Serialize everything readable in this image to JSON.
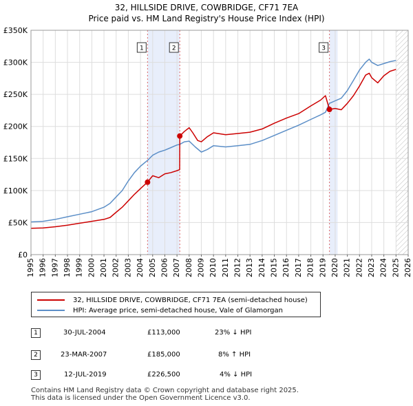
{
  "title_line1": "32, HILLSIDE DRIVE, COWBRIDGE, CF71 7EA",
  "title_line2": "Price paid vs. HM Land Registry's House Price Index (HPI)",
  "colors": {
    "property": "#cc0000",
    "hpi": "#5b8ec7",
    "shade": "#e8eefb",
    "grid": "#dddddd"
  },
  "chart_data": {
    "type": "line",
    "xlabel": "",
    "ylabel": "",
    "xlim": [
      1995,
      2026
    ],
    "ylim": [
      0,
      350000
    ],
    "x_ticks": [
      1995,
      1996,
      1997,
      1998,
      1999,
      2000,
      2001,
      2002,
      2003,
      2004,
      2005,
      2006,
      2007,
      2008,
      2009,
      2010,
      2011,
      2012,
      2013,
      2014,
      2015,
      2016,
      2017,
      2018,
      2019,
      2020,
      2021,
      2022,
      2023,
      2024,
      2025,
      2026
    ],
    "y_ticks": [
      {
        "value": 0,
        "label": "£0"
      },
      {
        "value": 50000,
        "label": "£50K"
      },
      {
        "value": 100000,
        "label": "£100K"
      },
      {
        "value": 150000,
        "label": "£150K"
      },
      {
        "value": 200000,
        "label": "£200K"
      },
      {
        "value": 250000,
        "label": "£250K"
      },
      {
        "value": 300000,
        "label": "£300K"
      },
      {
        "value": 350000,
        "label": "£350K"
      }
    ],
    "series": [
      {
        "name": "32, HILLSIDE DRIVE, COWBRIDGE, CF71 7EA (semi-detached house)",
        "color": "#cc0000",
        "points": [
          [
            1995.0,
            41000
          ],
          [
            1996.0,
            41500
          ],
          [
            1997.0,
            43500
          ],
          [
            1998.0,
            46000
          ],
          [
            1999.0,
            49000
          ],
          [
            2000.0,
            52000
          ],
          [
            2001.0,
            55000
          ],
          [
            2001.5,
            58000
          ],
          [
            2002.0,
            66000
          ],
          [
            2002.5,
            74000
          ],
          [
            2003.0,
            84000
          ],
          [
            2003.5,
            94000
          ],
          [
            2004.0,
            103000
          ],
          [
            2004.58,
            113000
          ],
          [
            2005.0,
            123000
          ],
          [
            2005.5,
            120000
          ],
          [
            2006.0,
            126000
          ],
          [
            2006.5,
            128000
          ],
          [
            2007.0,
            131000
          ],
          [
            2007.22,
            132500
          ],
          [
            2007.23,
            185000
          ],
          [
            2007.6,
            192000
          ],
          [
            2008.0,
            198000
          ],
          [
            2008.3,
            190000
          ],
          [
            2008.7,
            178000
          ],
          [
            2009.0,
            176000
          ],
          [
            2009.5,
            184000
          ],
          [
            2010.0,
            190000
          ],
          [
            2011.0,
            187000
          ],
          [
            2012.0,
            189000
          ],
          [
            2013.0,
            191000
          ],
          [
            2014.0,
            196000
          ],
          [
            2015.0,
            205000
          ],
          [
            2016.0,
            213000
          ],
          [
            2017.0,
            220000
          ],
          [
            2018.0,
            232000
          ],
          [
            2018.8,
            241000
          ],
          [
            2019.2,
            248000
          ],
          [
            2019.53,
            226500
          ],
          [
            2020.0,
            228000
          ],
          [
            2020.5,
            226000
          ],
          [
            2021.0,
            236000
          ],
          [
            2021.5,
            248000
          ],
          [
            2022.0,
            263000
          ],
          [
            2022.5,
            280000
          ],
          [
            2022.8,
            283000
          ],
          [
            2023.0,
            276000
          ],
          [
            2023.5,
            268000
          ],
          [
            2024.0,
            279000
          ],
          [
            2024.5,
            286000
          ],
          [
            2025.0,
            289000
          ]
        ]
      },
      {
        "name": "HPI: Average price, semi-detached house, Vale of Glamorgan",
        "color": "#5b8ec7",
        "points": [
          [
            1995.0,
            51000
          ],
          [
            1996.0,
            52000
          ],
          [
            1997.0,
            55000
          ],
          [
            1998.0,
            59000
          ],
          [
            1999.0,
            63000
          ],
          [
            2000.0,
            67000
          ],
          [
            2001.0,
            74000
          ],
          [
            2001.5,
            80000
          ],
          [
            2002.0,
            90000
          ],
          [
            2002.5,
            100000
          ],
          [
            2003.0,
            115000
          ],
          [
            2003.5,
            128000
          ],
          [
            2004.0,
            138000
          ],
          [
            2004.58,
            147000
          ],
          [
            2005.0,
            155000
          ],
          [
            2005.5,
            160000
          ],
          [
            2006.0,
            163000
          ],
          [
            2006.5,
            167000
          ],
          [
            2007.0,
            171000
          ],
          [
            2007.23,
            172000
          ],
          [
            2007.6,
            176000
          ],
          [
            2008.0,
            177000
          ],
          [
            2008.5,
            168000
          ],
          [
            2009.0,
            160000
          ],
          [
            2009.5,
            164000
          ],
          [
            2010.0,
            170000
          ],
          [
            2011.0,
            168000
          ],
          [
            2012.0,
            170000
          ],
          [
            2013.0,
            172000
          ],
          [
            2014.0,
            178000
          ],
          [
            2015.0,
            186000
          ],
          [
            2016.0,
            194000
          ],
          [
            2017.0,
            202000
          ],
          [
            2018.0,
            211000
          ],
          [
            2018.8,
            218000
          ],
          [
            2019.2,
            222000
          ],
          [
            2019.53,
            236000
          ],
          [
            2020.0,
            240000
          ],
          [
            2020.5,
            244000
          ],
          [
            2021.0,
            256000
          ],
          [
            2021.5,
            272000
          ],
          [
            2022.0,
            288000
          ],
          [
            2022.5,
            300000
          ],
          [
            2022.8,
            305000
          ],
          [
            2023.0,
            300000
          ],
          [
            2023.5,
            295000
          ],
          [
            2024.0,
            298000
          ],
          [
            2024.5,
            301000
          ],
          [
            2025.0,
            303000
          ]
        ]
      }
    ],
    "sales": [
      {
        "label": "1",
        "x": 2004.58,
        "price": 113000
      },
      {
        "label": "2",
        "x": 2007.23,
        "price": 185000
      },
      {
        "label": "3",
        "x": 2019.53,
        "price": 226500
      }
    ],
    "shaded_ranges": [
      [
        2004.58,
        2007.23
      ],
      [
        2019.53,
        2020.2
      ]
    ],
    "hatched_from": 2025.0
  },
  "legend": [
    {
      "label": "32, HILLSIDE DRIVE, COWBRIDGE, CF71 7EA (semi-detached house)",
      "color": "#cc0000"
    },
    {
      "label": "HPI: Average price, semi-detached house, Vale of Glamorgan",
      "color": "#5b8ec7"
    }
  ],
  "table": [
    {
      "num": "1",
      "date": "30-JUL-2004",
      "price": "£113,000",
      "hpi": "23% ↓ HPI"
    },
    {
      "num": "2",
      "date": "23-MAR-2007",
      "price": "£185,000",
      "hpi": "8% ↑ HPI"
    },
    {
      "num": "3",
      "date": "12-JUL-2019",
      "price": "£226,500",
      "hpi": "4% ↓ HPI"
    }
  ],
  "footer_line1": "Contains HM Land Registry data © Crown copyright and database right 2025.",
  "footer_line2": "This data is licensed under the Open Government Licence v3.0."
}
